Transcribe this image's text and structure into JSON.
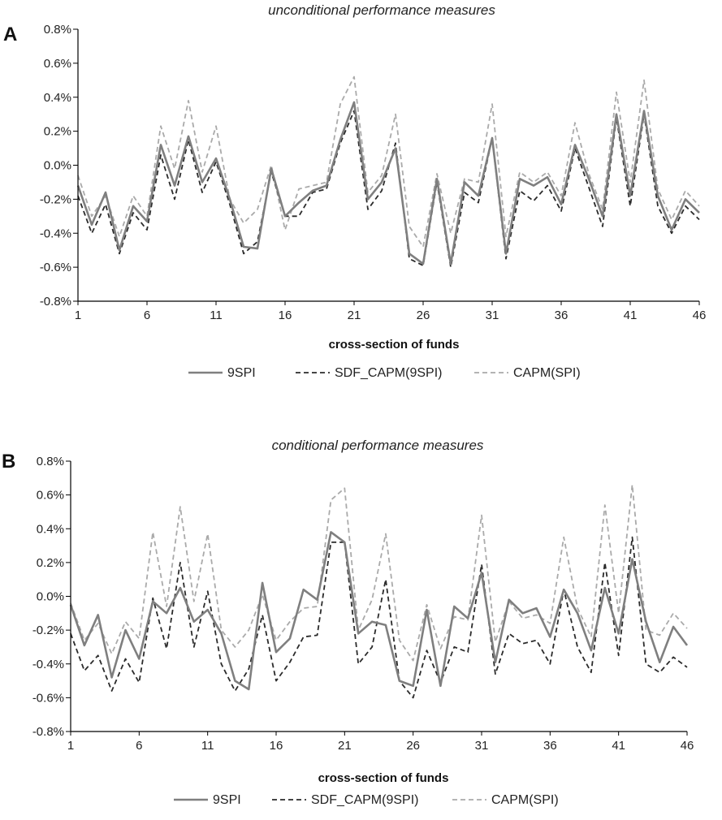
{
  "chart_data": [
    {
      "type": "line",
      "panel_label": "A",
      "title": "unconditional performance measures",
      "xlabel": "cross-section of funds",
      "ylabel": "",
      "ylim": [
        -0.8,
        0.8
      ],
      "xlim": [
        1,
        46
      ],
      "y_ticks": [
        -0.8,
        -0.6,
        -0.4,
        -0.2,
        0.0,
        0.2,
        0.4,
        0.6,
        0.8
      ],
      "y_tick_labels": [
        "-0.8%",
        "-0.6%",
        "-0.4%",
        "-0.2%",
        "0.0%",
        "0.2%",
        "0.4%",
        "0.6%",
        "0.8%"
      ],
      "x_ticks": [
        1,
        6,
        11,
        16,
        21,
        26,
        31,
        36,
        41,
        46
      ],
      "x_tick_labels": [
        "1",
        "6",
        "11",
        "16",
        "21",
        "26",
        "31",
        "36",
        "41",
        "46"
      ],
      "x": [
        1,
        2,
        3,
        4,
        5,
        6,
        7,
        8,
        9,
        10,
        11,
        12,
        13,
        14,
        15,
        16,
        17,
        18,
        19,
        20,
        21,
        22,
        23,
        24,
        25,
        26,
        27,
        28,
        29,
        30,
        31,
        32,
        33,
        34,
        35,
        36,
        37,
        38,
        39,
        40,
        41,
        42,
        43,
        44,
        45,
        46
      ],
      "legend_position": "bottom",
      "series": [
        {
          "name": "9SPI",
          "color": "#7f7f7f",
          "style": "solid",
          "values": [
            -0.12,
            -0.35,
            -0.16,
            -0.5,
            -0.24,
            -0.33,
            0.12,
            -0.12,
            0.17,
            -0.1,
            0.04,
            -0.2,
            -0.48,
            -0.49,
            -0.02,
            -0.3,
            -0.22,
            -0.15,
            -0.12,
            0.15,
            0.37,
            -0.2,
            -0.1,
            0.1,
            -0.52,
            -0.58,
            -0.08,
            -0.58,
            -0.1,
            -0.18,
            0.16,
            -0.52,
            -0.08,
            -0.12,
            -0.07,
            -0.23,
            0.12,
            -0.08,
            -0.3,
            0.3,
            -0.18,
            0.32,
            -0.18,
            -0.38,
            -0.2,
            -0.28
          ]
        },
        {
          "name": "SDF_CAPM(9SPI)",
          "color": "#2b2b2b",
          "style": "dashed",
          "values": [
            -0.18,
            -0.4,
            -0.23,
            -0.52,
            -0.28,
            -0.38,
            0.06,
            -0.2,
            0.15,
            -0.16,
            0.02,
            -0.23,
            -0.52,
            -0.45,
            -0.04,
            -0.3,
            -0.3,
            -0.16,
            -0.14,
            0.13,
            0.32,
            -0.26,
            -0.15,
            0.13,
            -0.55,
            -0.59,
            -0.1,
            -0.6,
            -0.16,
            -0.22,
            0.16,
            -0.55,
            -0.15,
            -0.21,
            -0.12,
            -0.27,
            0.1,
            -0.13,
            -0.36,
            0.28,
            -0.24,
            0.3,
            -0.24,
            -0.4,
            -0.24,
            -0.32
          ]
        },
        {
          "name": "CAPM(SPI)",
          "color": "#aaaaaa",
          "style": "dashed",
          "values": [
            -0.06,
            -0.3,
            -0.18,
            -0.42,
            -0.18,
            -0.3,
            0.23,
            -0.02,
            0.38,
            -0.04,
            0.23,
            -0.2,
            -0.34,
            -0.26,
            0.0,
            -0.38,
            -0.14,
            -0.12,
            -0.1,
            0.36,
            0.52,
            -0.16,
            -0.06,
            0.3,
            -0.36,
            -0.48,
            -0.05,
            -0.4,
            -0.08,
            -0.1,
            0.36,
            -0.42,
            -0.04,
            -0.1,
            -0.04,
            -0.18,
            0.25,
            -0.05,
            -0.26,
            0.43,
            -0.1,
            0.5,
            -0.14,
            -0.32,
            -0.15,
            -0.24
          ]
        }
      ]
    },
    {
      "type": "line",
      "panel_label": "B",
      "title": "conditional performance measures",
      "xlabel": "cross-section of funds",
      "ylabel": "",
      "ylim": [
        -0.8,
        0.8
      ],
      "xlim": [
        1,
        46
      ],
      "y_ticks": [
        -0.8,
        -0.6,
        -0.4,
        -0.2,
        0.0,
        0.2,
        0.4,
        0.6,
        0.8
      ],
      "y_tick_labels": [
        "-0.8%",
        "-0.6%",
        "-0.4%",
        "-0.2%",
        "0.0%",
        "0.2%",
        "0.4%",
        "0.6%",
        "0.8%"
      ],
      "x_ticks": [
        1,
        6,
        11,
        16,
        21,
        26,
        31,
        36,
        41,
        46
      ],
      "x_tick_labels": [
        "1",
        "6",
        "11",
        "16",
        "21",
        "26",
        "31",
        "36",
        "41",
        "46"
      ],
      "x": [
        1,
        2,
        3,
        4,
        5,
        6,
        7,
        8,
        9,
        10,
        11,
        12,
        13,
        14,
        15,
        16,
        17,
        18,
        19,
        20,
        21,
        22,
        23,
        24,
        25,
        26,
        27,
        28,
        29,
        30,
        31,
        32,
        33,
        34,
        35,
        36,
        37,
        38,
        39,
        40,
        41,
        42,
        43,
        44,
        45,
        46
      ],
      "legend_position": "bottom",
      "series": [
        {
          "name": "9SPI",
          "color": "#7f7f7f",
          "style": "solid",
          "values": [
            -0.05,
            -0.29,
            -0.11,
            -0.48,
            -0.2,
            -0.37,
            -0.03,
            -0.1,
            0.05,
            -0.15,
            -0.08,
            -0.22,
            -0.5,
            -0.55,
            0.08,
            -0.33,
            -0.25,
            0.04,
            -0.02,
            0.38,
            0.32,
            -0.22,
            -0.15,
            -0.17,
            -0.5,
            -0.53,
            -0.08,
            -0.53,
            -0.06,
            -0.13,
            0.14,
            -0.39,
            -0.02,
            -0.1,
            -0.07,
            -0.24,
            0.04,
            -0.1,
            -0.32,
            0.05,
            -0.22,
            0.22,
            -0.15,
            -0.39,
            -0.18,
            -0.29
          ]
        },
        {
          "name": "SDF_CAPM(9SPI)",
          "color": "#2b2b2b",
          "style": "dashed",
          "values": [
            -0.22,
            -0.44,
            -0.35,
            -0.56,
            -0.37,
            -0.51,
            -0.01,
            -0.31,
            0.2,
            -0.3,
            0.03,
            -0.4,
            -0.56,
            -0.43,
            -0.11,
            -0.5,
            -0.39,
            -0.24,
            -0.23,
            0.32,
            0.32,
            -0.4,
            -0.3,
            0.1,
            -0.5,
            -0.6,
            -0.32,
            -0.51,
            -0.3,
            -0.33,
            0.19,
            -0.46,
            -0.22,
            -0.28,
            -0.26,
            -0.4,
            0.04,
            -0.3,
            -0.45,
            0.2,
            -0.35,
            0.35,
            -0.4,
            -0.45,
            -0.36,
            -0.42
          ]
        },
        {
          "name": "CAPM(SPI)",
          "color": "#aaaaaa",
          "style": "dashed",
          "values": [
            -0.04,
            -0.26,
            -0.16,
            -0.34,
            -0.15,
            -0.25,
            0.38,
            -0.06,
            0.53,
            -0.03,
            0.37,
            -0.2,
            -0.3,
            -0.2,
            0.01,
            -0.26,
            -0.15,
            -0.07,
            -0.06,
            0.57,
            0.64,
            -0.2,
            -0.02,
            0.37,
            -0.26,
            -0.38,
            -0.05,
            -0.31,
            -0.12,
            -0.14,
            0.48,
            -0.27,
            -0.03,
            -0.13,
            -0.11,
            -0.16,
            0.35,
            -0.07,
            -0.24,
            0.54,
            -0.1,
            0.66,
            -0.2,
            -0.23,
            -0.1,
            -0.19
          ]
        }
      ]
    }
  ]
}
